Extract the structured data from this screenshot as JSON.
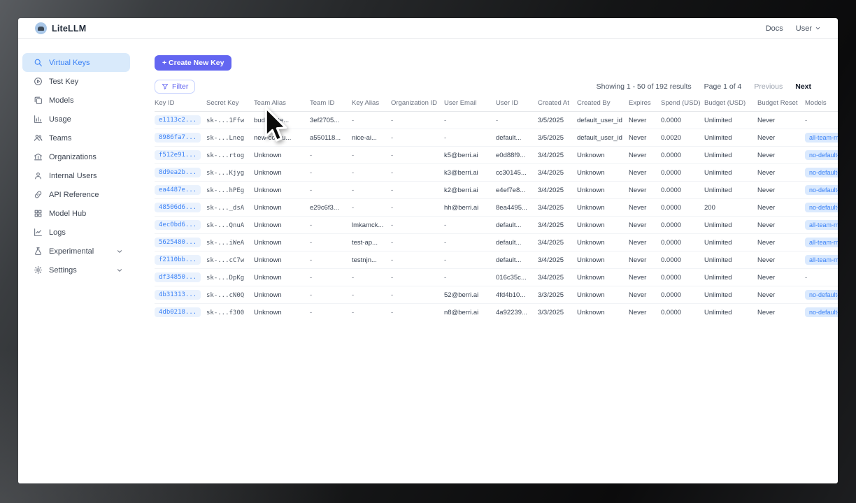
{
  "header": {
    "brand": "LiteLLM",
    "docs_link": "Docs",
    "user_menu": "User"
  },
  "sidebar": {
    "items": [
      {
        "label": "Virtual Keys",
        "icon": "key-search-icon",
        "active": true,
        "expandable": false
      },
      {
        "label": "Test Key",
        "icon": "play-circle-icon",
        "active": false,
        "expandable": false
      },
      {
        "label": "Models",
        "icon": "layers-icon",
        "active": false,
        "expandable": false
      },
      {
        "label": "Usage",
        "icon": "bar-chart-icon",
        "active": false,
        "expandable": false
      },
      {
        "label": "Teams",
        "icon": "people-icon",
        "active": false,
        "expandable": false
      },
      {
        "label": "Organizations",
        "icon": "bank-icon",
        "active": false,
        "expandable": false
      },
      {
        "label": "Internal Users",
        "icon": "person-icon",
        "active": false,
        "expandable": false
      },
      {
        "label": "API Reference",
        "icon": "link-icon",
        "active": false,
        "expandable": false
      },
      {
        "label": "Model Hub",
        "icon": "grid-icon",
        "active": false,
        "expandable": false
      },
      {
        "label": "Logs",
        "icon": "line-chart-icon",
        "active": false,
        "expandable": false
      },
      {
        "label": "Experimental",
        "icon": "flask-icon",
        "active": false,
        "expandable": true
      },
      {
        "label": "Settings",
        "icon": "gear-icon",
        "active": false,
        "expandable": true
      }
    ]
  },
  "toolbar": {
    "create_key_label": "+ Create New Key",
    "filter_label": "Filter"
  },
  "pagination": {
    "showing_text": "Showing 1 - 50 of 192 results",
    "page_text": "Page 1 of 4",
    "previous_label": "Previous",
    "next_label": "Next"
  },
  "table": {
    "columns": [
      "Key ID",
      "Secret Key",
      "Team Alias",
      "Team ID",
      "Key Alias",
      "Organization ID",
      "User Email",
      "User ID",
      "Created At",
      "Created By",
      "Expires",
      "Spend (USD)",
      "Budget (USD)",
      "Budget Reset",
      "Models"
    ],
    "rows": [
      [
        "e1113c2...",
        "sk-...1Ffw",
        "budget_te...",
        "3ef2705...",
        "-",
        "-",
        "-",
        "-",
        "3/5/2025",
        "default_user_id",
        "Never",
        "0.0000",
        "Unlimited",
        "Never",
        "-"
      ],
      [
        "8986fa7...",
        "sk-...Lneg",
        "new-collou...",
        "a550118...",
        "nice-ai...",
        "-",
        "-",
        "default...",
        "3/5/2025",
        "default_user_id",
        "Never",
        "0.0020",
        "Unlimited",
        "Never",
        "all-team-models"
      ],
      [
        "f512e91...",
        "sk-...rtog",
        "Unknown",
        "-",
        "-",
        "-",
        "k5@berri.ai",
        "e0d88f9...",
        "3/4/2025",
        "Unknown",
        "Never",
        "0.0000",
        "Unlimited",
        "Never",
        "no-default-models"
      ],
      [
        "8d9ea2b...",
        "sk-...Kjyg",
        "Unknown",
        "-",
        "-",
        "-",
        "k3@berri.ai",
        "cc30145...",
        "3/4/2025",
        "Unknown",
        "Never",
        "0.0000",
        "Unlimited",
        "Never",
        "no-default-models"
      ],
      [
        "ea4487e...",
        "sk-...hPEg",
        "Unknown",
        "-",
        "-",
        "-",
        "k2@berri.ai",
        "e4ef7e8...",
        "3/4/2025",
        "Unknown",
        "Never",
        "0.0000",
        "Unlimited",
        "Never",
        "no-default-models"
      ],
      [
        "48506d6...",
        "sk-..._dsA",
        "Unknown",
        "e29c6f3...",
        "-",
        "-",
        "hh@berri.ai",
        "8ea4495...",
        "3/4/2025",
        "Unknown",
        "Never",
        "0.0000",
        "200",
        "Never",
        "no-default-models"
      ],
      [
        "4ec0bd6...",
        "sk-...QnuA",
        "Unknown",
        "-",
        "lmkamck...",
        "-",
        "-",
        "default...",
        "3/4/2025",
        "Unknown",
        "Never",
        "0.0000",
        "Unlimited",
        "Never",
        "all-team-models"
      ],
      [
        "5625480...",
        "sk-...iWeA",
        "Unknown",
        "-",
        "test-ap...",
        "-",
        "-",
        "default...",
        "3/4/2025",
        "Unknown",
        "Never",
        "0.0000",
        "Unlimited",
        "Never",
        "all-team-models"
      ],
      [
        "f2110bb...",
        "sk-...cC7w",
        "Unknown",
        "-",
        "testnjn...",
        "-",
        "-",
        "default...",
        "3/4/2025",
        "Unknown",
        "Never",
        "0.0000",
        "Unlimited",
        "Never",
        "all-team-models"
      ],
      [
        "df34850...",
        "sk-...DpKg",
        "Unknown",
        "-",
        "-",
        "-",
        "-",
        "016c35c...",
        "3/4/2025",
        "Unknown",
        "Never",
        "0.0000",
        "Unlimited",
        "Never",
        "-"
      ],
      [
        "4b31313...",
        "sk-...cN0Q",
        "Unknown",
        "-",
        "-",
        "-",
        "52@berri.ai",
        "4fd4b10...",
        "3/3/2025",
        "Unknown",
        "Never",
        "0.0000",
        "Unlimited",
        "Never",
        "no-default-models"
      ],
      [
        "4db0218...",
        "sk-...f300",
        "Unknown",
        "-",
        "-",
        "-",
        "n8@berri.ai",
        "4a92239...",
        "3/3/2025",
        "Unknown",
        "Never",
        "0.0000",
        "Unlimited",
        "Never",
        "no-default-models"
      ]
    ]
  },
  "colors": {
    "accent": "#6366f1",
    "active_nav_bg": "#d9eafb",
    "active_nav_text": "#3b82f6",
    "key_chip_bg": "#eaf2fd",
    "key_chip_text": "#3b82f6",
    "model_badge_bg": "#dbeafe",
    "model_badge_text": "#3b82f6"
  }
}
